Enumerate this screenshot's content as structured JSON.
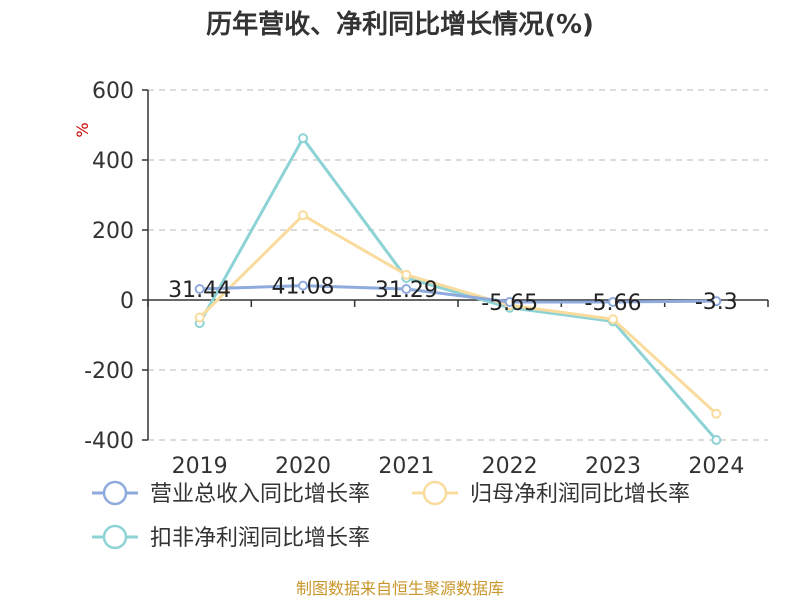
{
  "chart_data": {
    "type": "line",
    "title": "历年营收、净利同比增长情况(%)",
    "ylabel": "%",
    "xlabel": "",
    "ylim": [
      -400,
      600
    ],
    "yticks": [
      600,
      400,
      200,
      0,
      -200,
      -400
    ],
    "grid": true,
    "legend_position": "bottom-left",
    "categories": [
      "2019",
      "2020",
      "2021",
      "2022",
      "2023",
      "2024"
    ],
    "series": [
      {
        "name": "营业总收入同比增长率",
        "color": "#8faadc",
        "values": [
          31.44,
          41.08,
          31.29,
          -5.65,
          -5.66,
          -3.3
        ],
        "labels": [
          "31.44",
          "41.08",
          "31.29",
          "-5.65",
          "-5.66",
          "-3.3"
        ]
      },
      {
        "name": "归母净利润同比增长率",
        "color": "#f9dc9d",
        "values": [
          -50,
          242,
          72,
          -15,
          -55,
          -325
        ]
      },
      {
        "name": "扣非净利润同比增长率",
        "color": "#8dd3d6",
        "values": [
          -66,
          462,
          63,
          -22,
          -61,
          -400
        ]
      }
    ]
  },
  "source": "制图数据来自恒生聚源数据库"
}
